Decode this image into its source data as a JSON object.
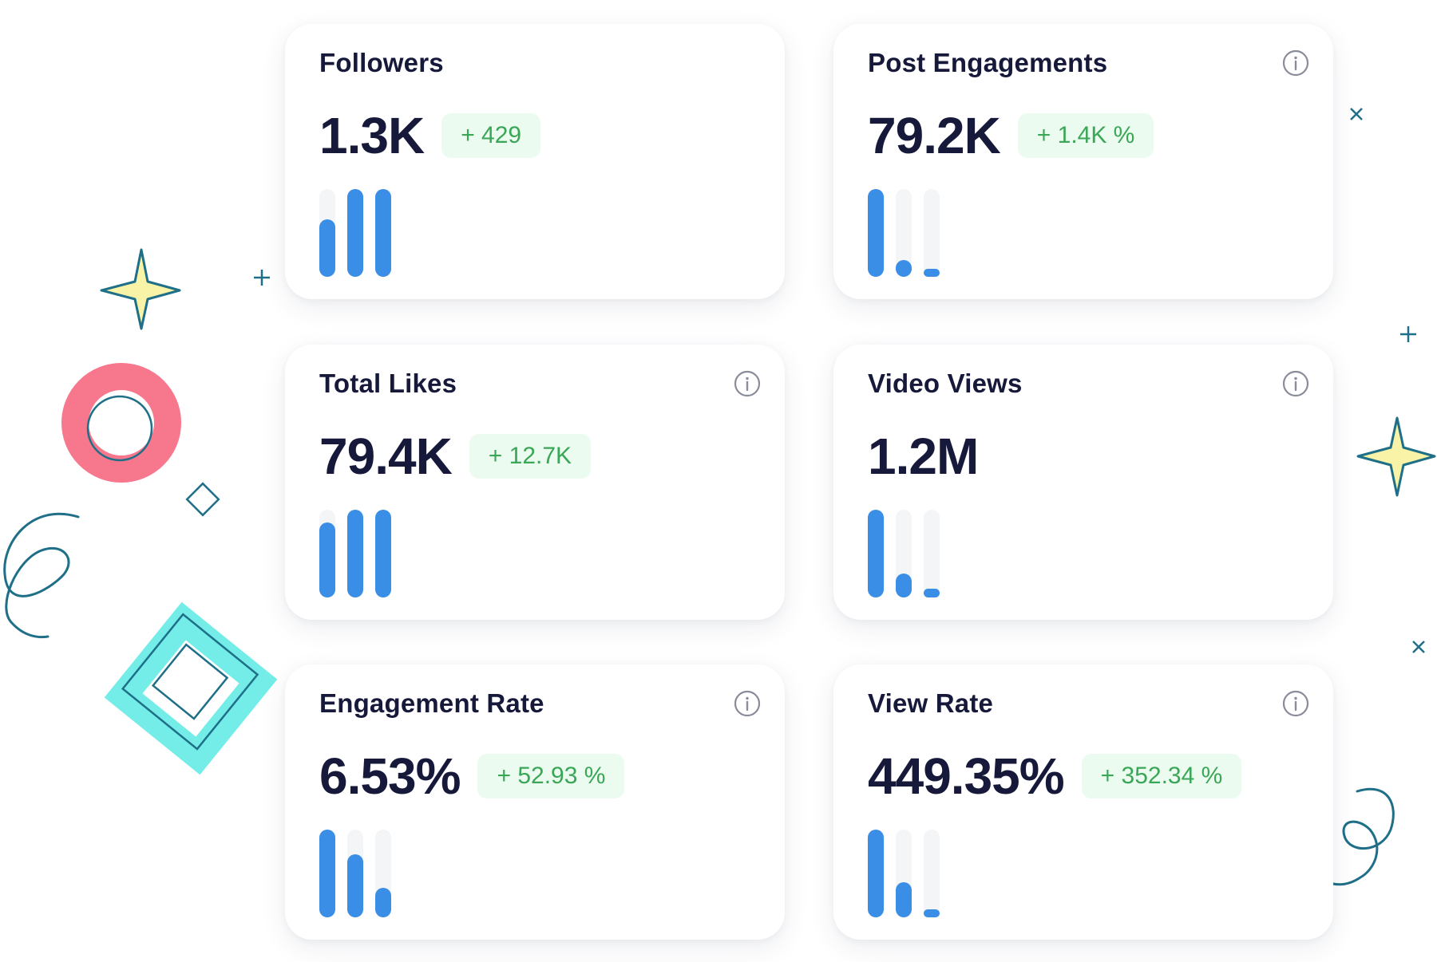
{
  "cards": [
    {
      "title": "Followers",
      "value": "1.3K",
      "delta": "+ 429",
      "bars": [
        0.65,
        1.0,
        1.0
      ],
      "has_info": false
    },
    {
      "title": "Post Engagements",
      "value": "79.2K",
      "delta": "+ 1.4K %",
      "bars": [
        1.0,
        0.19,
        0.09
      ],
      "has_info": true
    },
    {
      "title": "Total Likes",
      "value": "79.4K",
      "delta": "+ 12.7K",
      "bars": [
        0.85,
        1.0,
        1.0
      ],
      "has_info": true
    },
    {
      "title": "Video Views",
      "value": "1.2M",
      "delta": "",
      "bars": [
        1.0,
        0.27,
        0.1
      ],
      "has_info": true
    },
    {
      "title": "Engagement Rate",
      "value": "6.53%",
      "delta": "+ 52.93 %",
      "bars": [
        1.0,
        0.72,
        0.34
      ],
      "has_info": true
    },
    {
      "title": "View Rate",
      "value": "449.35%",
      "delta": "+ 352.34 %",
      "bars": [
        1.0,
        0.4,
        0.08
      ],
      "has_info": true
    }
  ],
  "colors": {
    "bar": "#3a8ee6",
    "bar_track": "#f4f5f7",
    "delta_text": "#3aa657",
    "delta_bg": "#ecfbef",
    "text": "#16193a"
  }
}
